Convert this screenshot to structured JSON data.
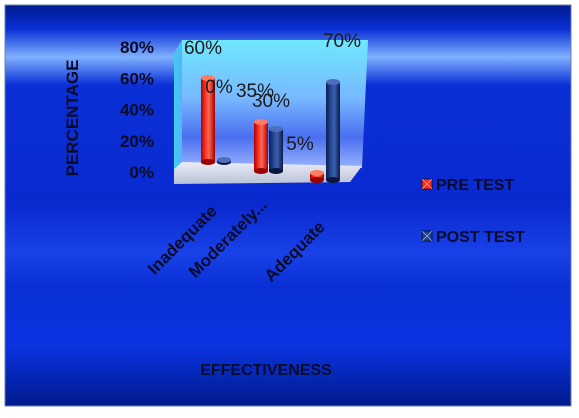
{
  "chart_data": {
    "type": "bar",
    "style": "3d-cylinder",
    "title": "",
    "xlabel": "EFFECTIVENESS",
    "ylabel": "PERCENTAGE",
    "ylim": [
      0,
      80
    ],
    "yticks": [
      "0%",
      "20%",
      "40%",
      "60%",
      "80%"
    ],
    "categories": [
      "Inadequate",
      "Moderately...",
      "Adequate"
    ],
    "series": [
      {
        "name": "PRE TEST",
        "values": [
          60,
          35,
          5
        ],
        "labels": [
          "60%",
          "35%",
          "5%"
        ],
        "color": "#ff2a1a"
      },
      {
        "name": "POST TEST",
        "values": [
          0,
          30,
          70
        ],
        "labels": [
          "0%",
          "30%",
          "70%"
        ],
        "color": "#1e3f8a"
      }
    ],
    "legend_position": "right",
    "grid": false
  },
  "colors": {
    "background_top": "#5a8cf2",
    "background_mid": "#0a2fd6",
    "background_edge": "#001a8c",
    "text_dark": "#0b0b2a",
    "back_wall_glow": "#7fe6ff"
  }
}
